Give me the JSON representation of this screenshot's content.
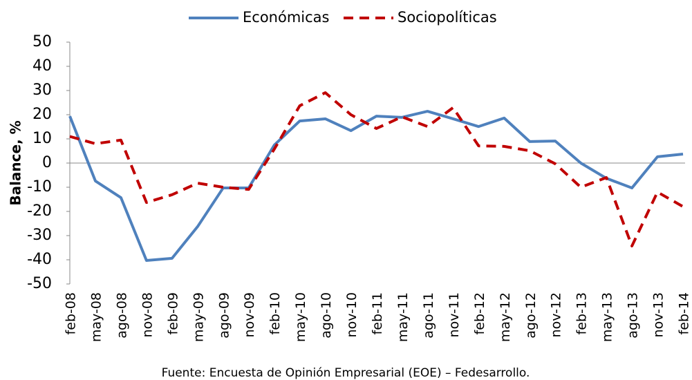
{
  "chart_data": {
    "type": "line",
    "y_label": "Balance, %",
    "source": "Fuente: Encuesta de Opinión Empresarial (EOE) – Fedesarrollo.",
    "categories": [
      "feb-08",
      "may-08",
      "ago-08",
      "nov-08",
      "feb-09",
      "may-09",
      "ago-09",
      "nov-09",
      "feb-10",
      "may-10",
      "ago-10",
      "nov-10",
      "feb-11",
      "may-11",
      "ago-11",
      "nov-11",
      "feb-12",
      "may-12",
      "ago-12",
      "nov-12",
      "feb-13",
      "may-13",
      "ago-13",
      "nov-13",
      "feb-14"
    ],
    "series": [
      {
        "name": "Económicas",
        "color": "#4f81bd",
        "dash": "solid",
        "values": [
          19.4,
          -7.4,
          -14.3,
          -40.3,
          -39.4,
          -26.3,
          -10.3,
          -10.3,
          7.4,
          17.4,
          18.3,
          13.4,
          19.4,
          18.9,
          21.4,
          18.3,
          15.1,
          18.6,
          8.9,
          9.1,
          0,
          -6.3,
          -10.3,
          2.6,
          3.7
        ]
      },
      {
        "name": "Sociopolíticas",
        "color": "#c00000",
        "dash": "dashed",
        "values": [
          11,
          8,
          9.5,
          -16.3,
          -13.1,
          -8.3,
          -10,
          -10.9,
          5.7,
          23.7,
          29.1,
          20,
          14.3,
          19.1,
          15.1,
          22.9,
          7.1,
          6.9,
          5.1,
          -0.3,
          -10,
          -6,
          -34.3,
          -12,
          -18
        ]
      }
    ],
    "ylim": [
      -50,
      50
    ],
    "yticks": [
      -50,
      -40,
      -30,
      -20,
      -10,
      0,
      10,
      20,
      30,
      40,
      50
    ],
    "legend": "top"
  }
}
